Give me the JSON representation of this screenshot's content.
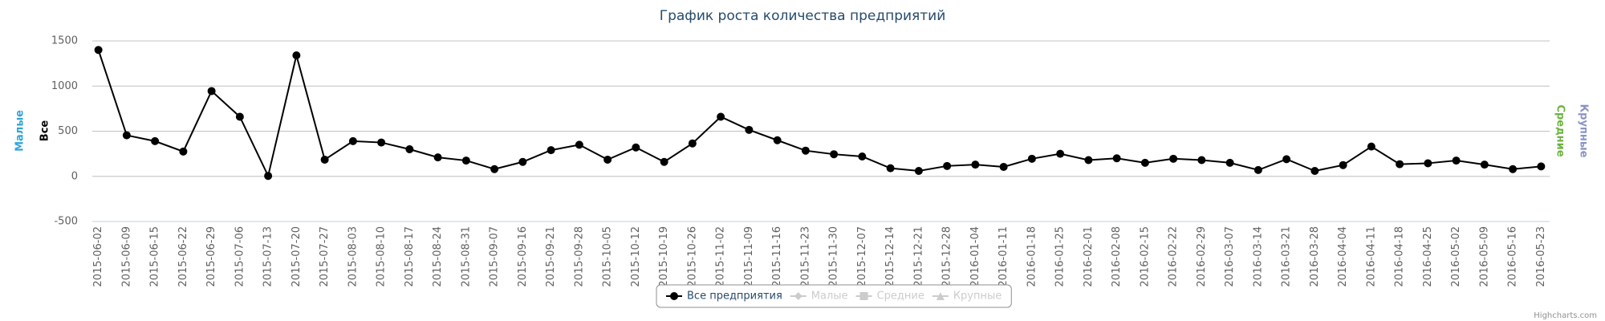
{
  "chart_data": {
    "type": "line",
    "title": "График роста количества предприятий",
    "categories": [
      "2015-06-02",
      "2015-06-09",
      "2015-06-15",
      "2015-06-22",
      "2015-06-29",
      "2015-07-06",
      "2015-07-13",
      "2015-07-20",
      "2015-07-27",
      "2015-08-03",
      "2015-08-10",
      "2015-08-17",
      "2015-08-24",
      "2015-08-31",
      "2015-09-07",
      "2015-09-16",
      "2015-09-21",
      "2015-09-28",
      "2015-10-05",
      "2015-10-12",
      "2015-10-19",
      "2015-10-26",
      "2015-11-02",
      "2015-11-09",
      "2015-11-16",
      "2015-11-23",
      "2015-11-30",
      "2015-12-07",
      "2015-12-14",
      "2015-12-21",
      "2015-12-28",
      "2016-01-04",
      "2016-01-11",
      "2016-01-18",
      "2016-01-25",
      "2016-02-01",
      "2016-02-08",
      "2016-02-15",
      "2016-02-22",
      "2016-02-29",
      "2016-03-07",
      "2016-03-14",
      "2016-03-21",
      "2016-03-28",
      "2016-04-04",
      "2016-04-11",
      "2016-04-18",
      "2016-04-25",
      "2016-05-02",
      "2016-05-09",
      "2016-05-16",
      "2016-05-23"
    ],
    "series": [
      {
        "name": "Все предприятия",
        "color": "#000000",
        "marker": "circle",
        "visible": true,
        "values": [
          1400,
          455,
          390,
          275,
          945,
          660,
          5,
          1340,
          185,
          390,
          375,
          300,
          210,
          175,
          80,
          160,
          290,
          350,
          185,
          320,
          160,
          365,
          660,
          515,
          400,
          285,
          245,
          220,
          90,
          60,
          115,
          130,
          105,
          195,
          250,
          180,
          200,
          150,
          195,
          180,
          150,
          70,
          190,
          60,
          125,
          330,
          135,
          145,
          175,
          130,
          80,
          110
        ]
      },
      {
        "name": "Малые",
        "color": "#2fa4d9",
        "marker": "diamond",
        "visible": false
      },
      {
        "name": "Средние",
        "color": "#6cb33f",
        "marker": "square",
        "visible": false
      },
      {
        "name": "Крупные",
        "color": "#8a93c6",
        "marker": "triangle",
        "visible": false
      }
    ],
    "axis_titles": [
      {
        "text": "Малые",
        "color": "#2fa4d9",
        "side": "left"
      },
      {
        "text": "Все",
        "color": "#000000",
        "side": "left"
      },
      {
        "text": "Средние",
        "color": "#6cb33f",
        "side": "right"
      },
      {
        "text": "Крупные",
        "color": "#8a93c6",
        "side": "right"
      }
    ],
    "ylim": [
      -500,
      1500
    ],
    "yticks": [
      1500,
      1000,
      500,
      0,
      -500
    ],
    "grid": true,
    "legend": "bottom",
    "credits": "Highcharts.com"
  }
}
